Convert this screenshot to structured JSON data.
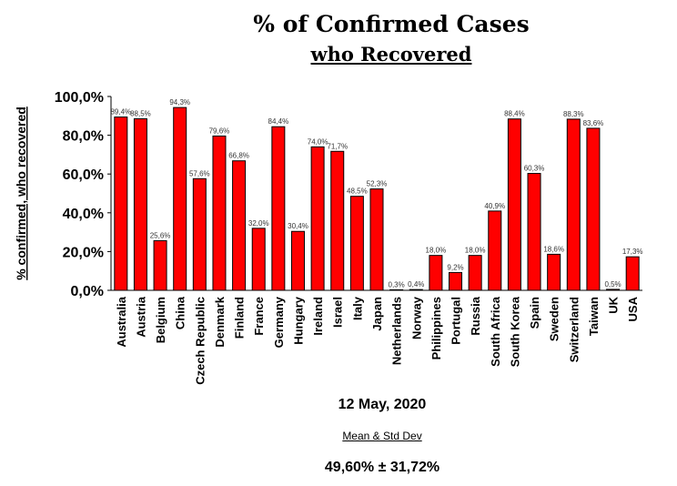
{
  "title_line1": "% of Confirmed Cases",
  "title_line2": "who Recovered",
  "date": "12 May, 2020",
  "stats": {
    "label": "Mean & Std Dev",
    "value": "49,60%  ± 31,72%"
  },
  "colors": {
    "bar": "#ff0000",
    "bar_edge": "#000000"
  },
  "chart_data": {
    "type": "bar",
    "ylabel": "% confirmed, who recovered",
    "ylim": [
      0,
      100
    ],
    "yticks": [
      "0,0%",
      "20,0%",
      "40,0%",
      "60,0%",
      "80,0%",
      "100,0%"
    ],
    "grid": false,
    "categories": [
      "Australia",
      "Austria",
      "Belgium",
      "China",
      "Czech Republic",
      "Denmark",
      "Finland",
      "France",
      "Germany",
      "Hungary",
      "Ireland",
      "Israel",
      "Italy",
      "Japan",
      "Netherlands",
      "Norway",
      "Philippines",
      "Portugal",
      "Russia",
      "South Africa",
      "South Korea",
      "Spain",
      "Sweden",
      "Switzerland",
      "Taiwan",
      "UK",
      "USA"
    ],
    "values": [
      89.4,
      88.5,
      25.6,
      94.3,
      57.6,
      79.6,
      66.8,
      32.0,
      84.4,
      30.4,
      74.0,
      71.7,
      48.5,
      52.3,
      0.3,
      0.4,
      18.0,
      9.2,
      18.0,
      40.9,
      88.4,
      60.3,
      18.6,
      88.3,
      83.6,
      0.5,
      17.3
    ],
    "labels": [
      "89,4%",
      "88,5%",
      "25,6%",
      "94,3%",
      "57,6%",
      "79,6%",
      "66,8%",
      "32,0%",
      "84,4%",
      "30,4%",
      "74,0%",
      "71,7%",
      "48,5%",
      "52,3%",
      "0,3%",
      "0,4%",
      "18,0%",
      "9,2%",
      "18,0%",
      "40,9%",
      "88,4%",
      "60,3%",
      "18,6%",
      "88,3%",
      "83,6%",
      "0,5%",
      "17,3%"
    ]
  }
}
